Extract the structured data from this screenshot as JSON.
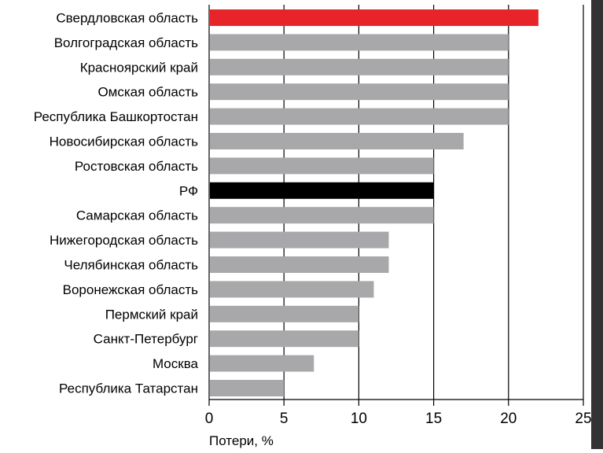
{
  "colors": {
    "highlight": "#e8242b",
    "national": "#000000",
    "default": "#a8a8aa",
    "axis": "#000000",
    "grid": "#000000",
    "edge": "#333333"
  },
  "chart_data": {
    "type": "bar",
    "orientation": "horizontal",
    "title": "",
    "xlabel": "Потери, %",
    "ylabel": "",
    "xlim": [
      0,
      25
    ],
    "x_ticks": [
      "0",
      "5",
      "10",
      "15",
      "20",
      "25"
    ],
    "grid": true,
    "legend": "none",
    "categories": [
      "Свердловская область",
      "Волгоградская область",
      "Красноярский край",
      "Омская область",
      "Республика Башкортостан",
      "Новосибирская область",
      "Ростовская область",
      "РФ",
      "Самарская область",
      "Нижегородская область",
      "Челябинская область",
      "Воронежская область",
      "Пермский край",
      "Санкт-Петербург",
      "Москва",
      "Республика Татарстан"
    ],
    "values": [
      22,
      20,
      20,
      20,
      20,
      17,
      15,
      15,
      15,
      12,
      12,
      11,
      10,
      10,
      7,
      5
    ],
    "bar_colors": [
      "#e8242b",
      "#a8a8aa",
      "#a8a8aa",
      "#a8a8aa",
      "#a8a8aa",
      "#a8a8aa",
      "#a8a8aa",
      "#000000",
      "#a8a8aa",
      "#a8a8aa",
      "#a8a8aa",
      "#a8a8aa",
      "#a8a8aa",
      "#a8a8aa",
      "#a8a8aa",
      "#a8a8aa"
    ]
  }
}
